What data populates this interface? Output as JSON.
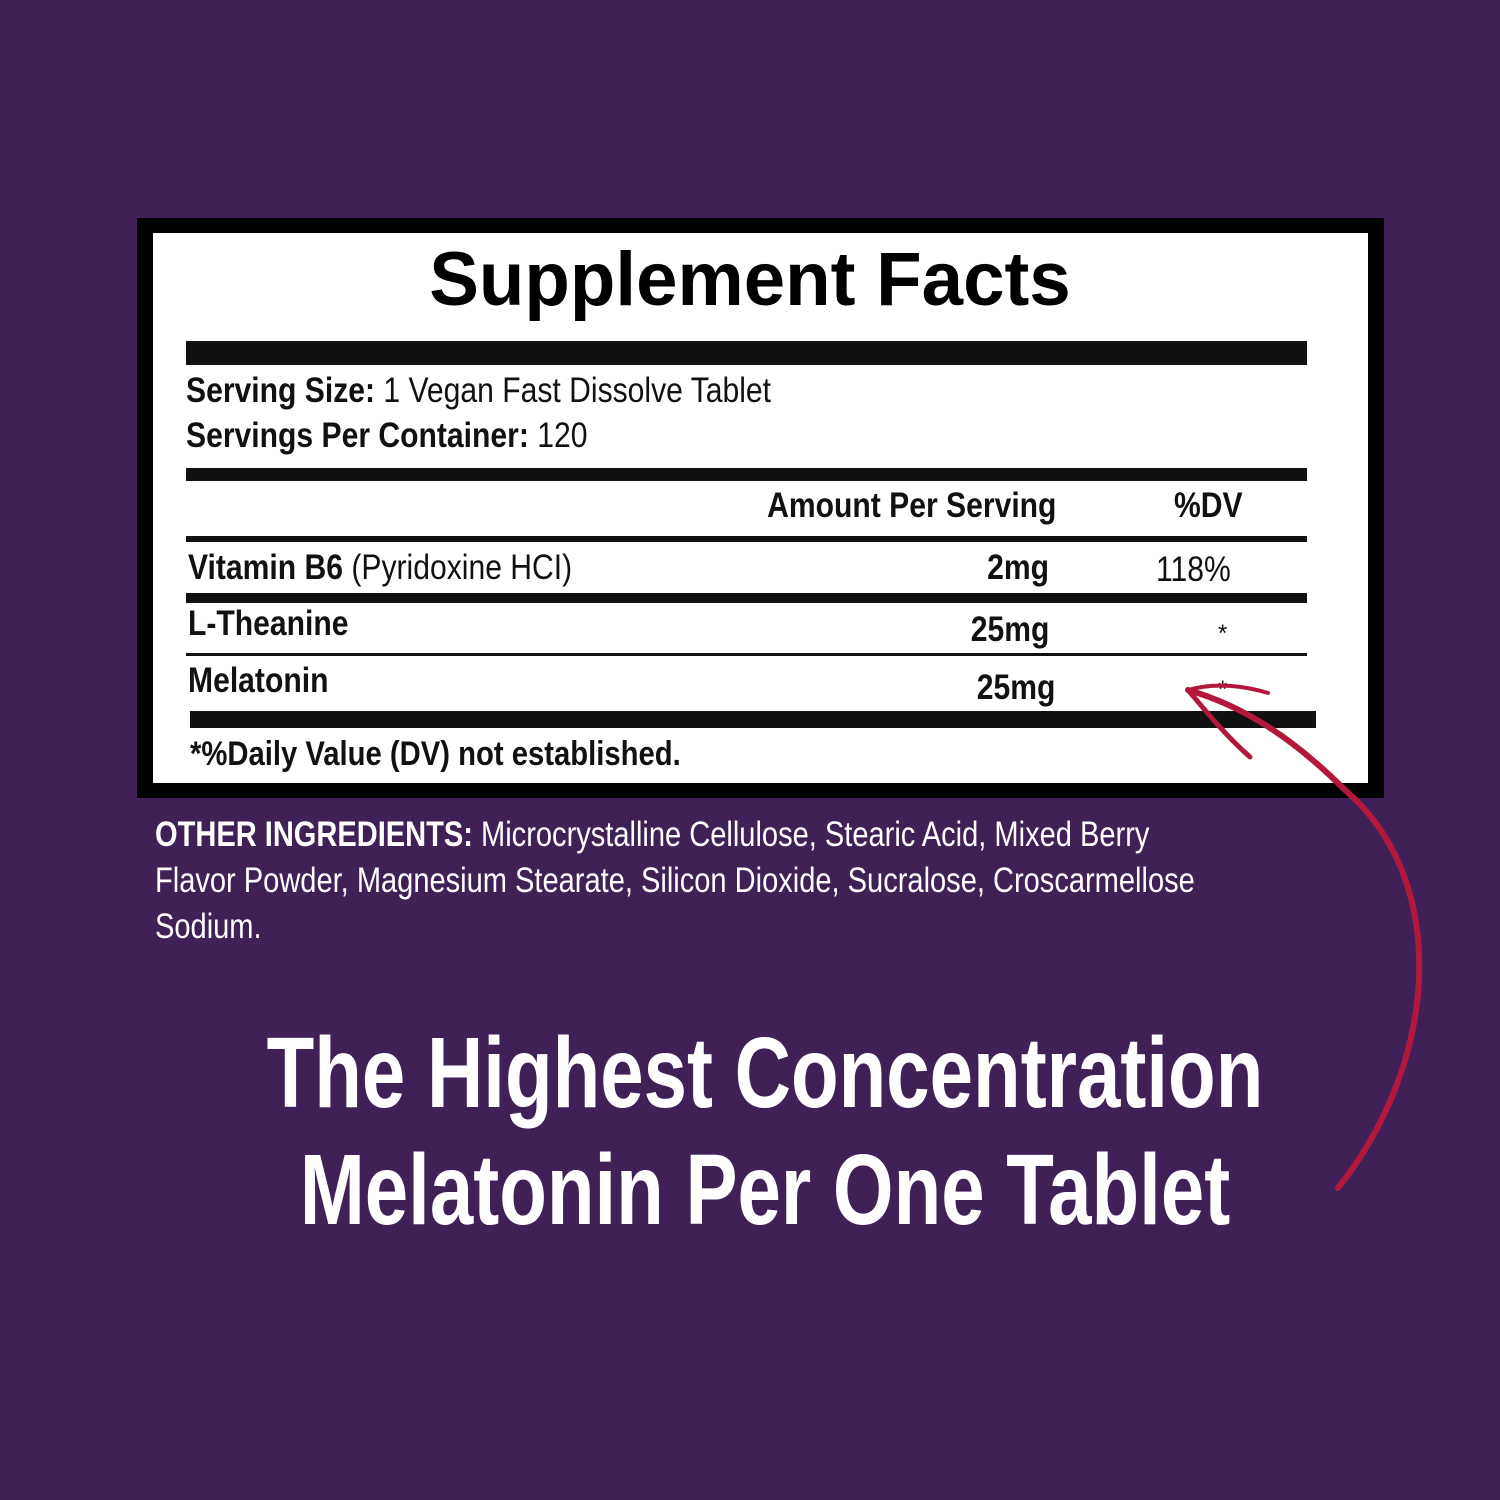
{
  "facts": {
    "title": "Supplement Facts",
    "serving_size_label": "Serving Size:",
    "serving_size_value": "1 Vegan Fast Dissolve Tablet",
    "servings_label": "Servings Per Container:",
    "servings_value": "120",
    "col_amount": "Amount Per Serving",
    "col_dv": "%DV",
    "rows": [
      {
        "name": "Vitamin B6",
        "detail": "(Pyridoxine HCI)",
        "amount": "2mg",
        "dv": "118%"
      },
      {
        "name": "L-Theanine",
        "detail": "",
        "amount": "25mg",
        "dv": "*"
      },
      {
        "name": "Melatonin",
        "detail": "",
        "amount": "25mg",
        "dv": "*"
      }
    ],
    "footnote": "*%Daily Value (DV) not established."
  },
  "other_ingredients": {
    "label": "OTHER INGREDIENTS:",
    "line1": "Microcrystalline Cellulose, Stearic Acid, Mixed Berry",
    "line2": "Flavor Powder, Magnesium Stearate, Silicon Dioxide, Sucralose, Croscarmellose",
    "line3": "Sodium."
  },
  "headline": {
    "line1": "The Highest Concentration",
    "line2": "Melatonin Per One Tablet"
  },
  "colors": {
    "background": "#3f2158",
    "arrow": "#b3183c",
    "panel": "#ffffff"
  },
  "icons": {
    "arrow": "hand-drawn-arrow-icon"
  }
}
